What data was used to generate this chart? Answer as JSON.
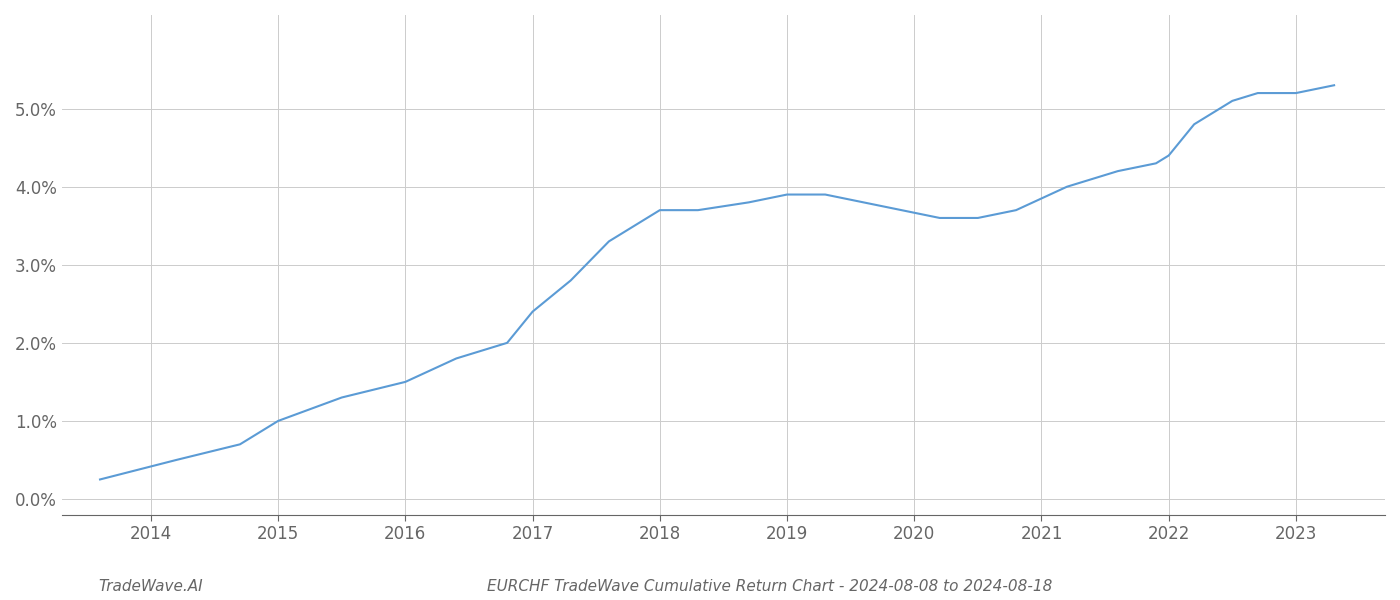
{
  "title": "EURCHF TradeWave Cumulative Return Chart - 2024-08-08 to 2024-08-18",
  "watermark": "TradeWave.AI",
  "x_years": [
    2014,
    2015,
    2016,
    2017,
    2018,
    2019,
    2020,
    2021,
    2022,
    2023
  ],
  "x_data": [
    2013.6,
    2014.2,
    2014.7,
    2015.0,
    2015.5,
    2016.0,
    2016.4,
    2016.8,
    2017.0,
    2017.3,
    2017.6,
    2018.0,
    2018.3,
    2018.7,
    2019.0,
    2019.3,
    2019.6,
    2019.9,
    2020.2,
    2020.5,
    2020.8,
    2021.2,
    2021.6,
    2021.9,
    2022.0,
    2022.2,
    2022.5,
    2022.7,
    2023.0,
    2023.3
  ],
  "y_data": [
    0.0025,
    0.005,
    0.007,
    0.01,
    0.013,
    0.015,
    0.018,
    0.02,
    0.024,
    0.028,
    0.033,
    0.037,
    0.037,
    0.038,
    0.039,
    0.039,
    0.038,
    0.037,
    0.036,
    0.036,
    0.037,
    0.04,
    0.042,
    0.043,
    0.044,
    0.048,
    0.051,
    0.052,
    0.052,
    0.053
  ],
  "line_color": "#5b9bd5",
  "line_width": 1.5,
  "ylim": [
    -0.002,
    0.062
  ],
  "xlim": [
    2013.3,
    2023.7
  ],
  "yticks": [
    0.0,
    0.01,
    0.02,
    0.03,
    0.04,
    0.05
  ],
  "background_color": "#ffffff",
  "grid_color": "#cccccc",
  "font_color": "#666666",
  "title_fontsize": 11,
  "watermark_fontsize": 11,
  "tick_fontsize": 12
}
